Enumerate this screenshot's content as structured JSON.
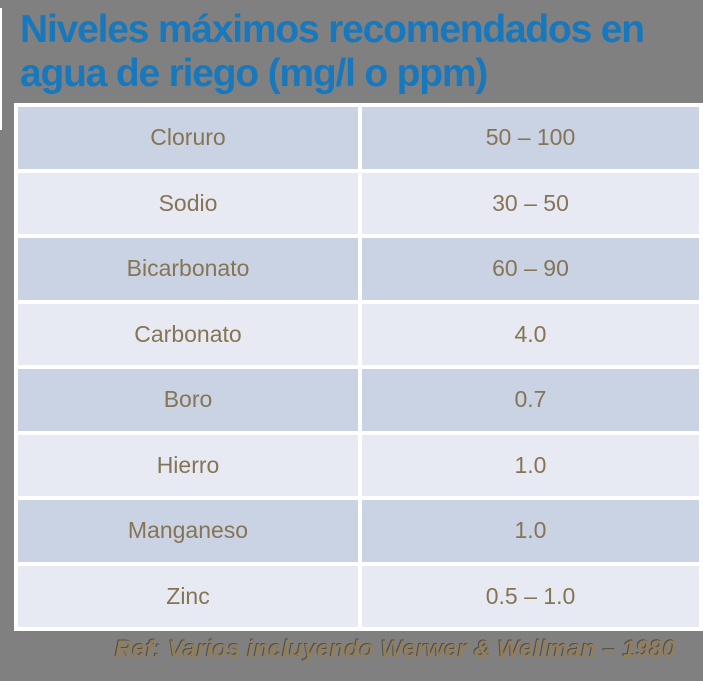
{
  "slide": {
    "title_line1": "Niveles máximos recomendados en",
    "title_line2": "agua de riego (mg/l o ppm)",
    "footer": "Ref: Varios incluyendo Werwer & Wellman – 1980"
  },
  "table": {
    "rows": [
      {
        "name": "Cloruro",
        "value": "50 – 100"
      },
      {
        "name": "Sodio",
        "value": "30 – 50"
      },
      {
        "name": "Bicarbonato",
        "value": "60 – 90"
      },
      {
        "name": "Carbonato",
        "value": "4.0"
      },
      {
        "name": "Boro",
        "value": "0.7"
      },
      {
        "name": "Hierro",
        "value": "1.0"
      },
      {
        "name": "Manganeso",
        "value": "1.0"
      },
      {
        "name": "Zinc",
        "value": "0.5 – 1.0"
      }
    ]
  },
  "colors": {
    "background_gray": "#808080",
    "title_blue": "#1878be",
    "row_dark": "#c9d3e3",
    "row_light": "#e7eaf2",
    "cell_text_brown": "#867455",
    "footer_tan": "#927e5b",
    "table_border_white": "#ffffff"
  }
}
